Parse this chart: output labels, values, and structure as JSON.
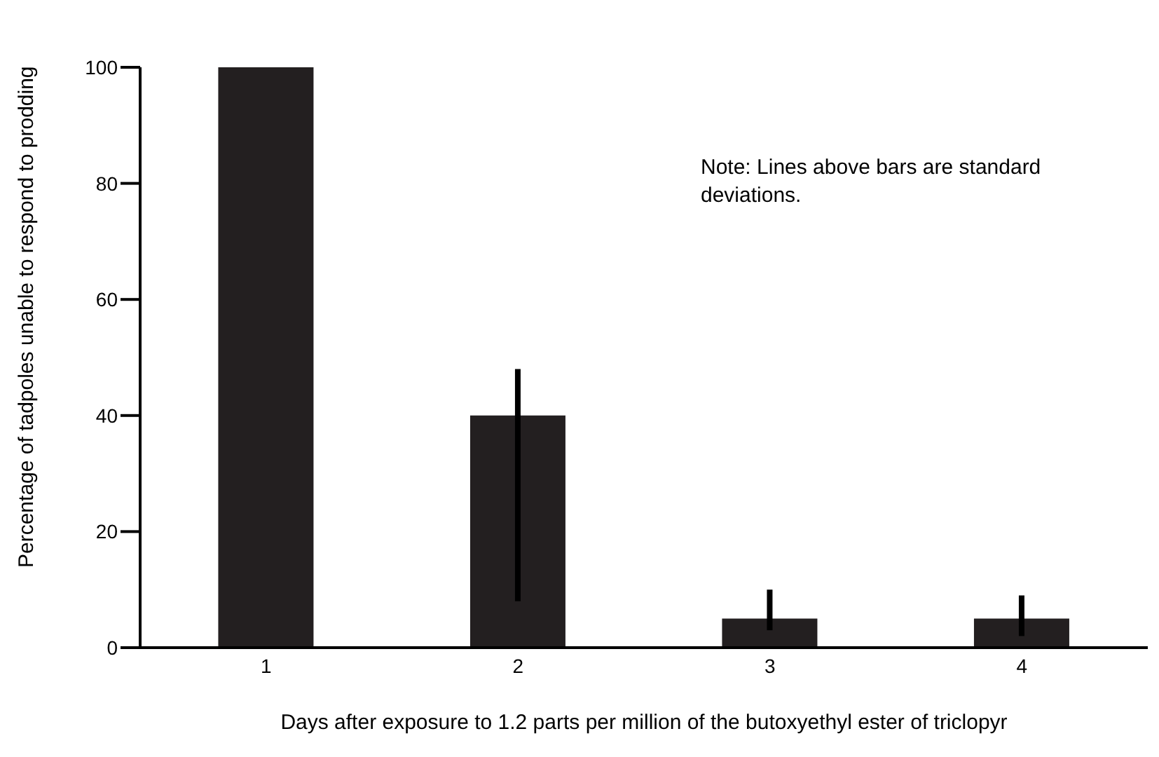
{
  "chart_data": {
    "type": "bar",
    "xlabel": "Days after exposure to 1.2 parts per million of the butoxyethyl ester of triclopyr",
    "ylabel": "Percentage of tadpoles unable to respond to prodding",
    "categories": [
      "1",
      "2",
      "3",
      "4"
    ],
    "values": [
      100,
      40,
      5,
      5
    ],
    "errors": [
      null,
      [
        8,
        48
      ],
      [
        3,
        10
      ],
      [
        2,
        9
      ]
    ],
    "color": "#231f20",
    "ylim": [
      0,
      100
    ],
    "yticks": [
      0,
      20,
      40,
      60,
      80,
      100
    ],
    "annotations": [
      "Note: Lines above bars are standard deviations."
    ]
  }
}
